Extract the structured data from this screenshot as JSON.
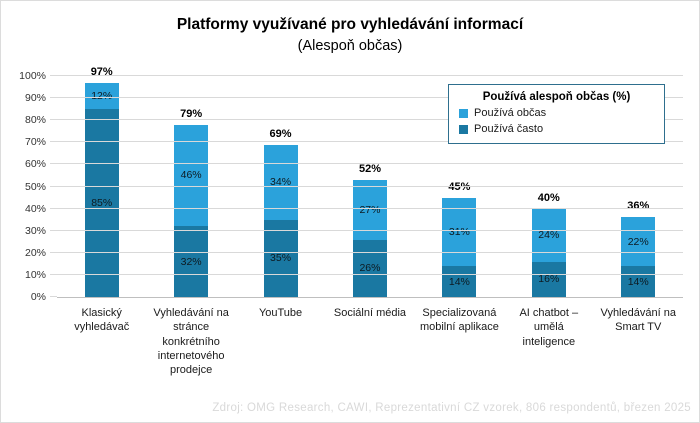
{
  "title": "Platformy využívané pro vyhledávání informací",
  "subtitle": "(Alespoň občas)",
  "legend": {
    "title": "Používá alespoň občas (%)",
    "items": [
      {
        "label": "Používá občas",
        "color": "#2BA2DB"
      },
      {
        "label": "Používá často",
        "color": "#1A78A2"
      }
    ]
  },
  "footer": "Zdroj: OMG Research, CAWI, Reprezentativní CZ vzorek, 806 respondentů, březen 2025",
  "colors": {
    "bar_light": "#2BA2DB",
    "bar_dark": "#1A78A2",
    "gridline": "#d9d9d9",
    "axis": "#bfbfbf",
    "legend_border": "#2e6f8e",
    "footer_text": "#d9d9d9"
  },
  "chart_data": {
    "type": "bar",
    "stacked": true,
    "title": "Platformy využívané pro vyhledávání informací (Alespoň občas)",
    "categories": [
      "Klasický vyhledávač",
      "Vyhledávání na stránce konkrétního internetového prodejce",
      "YouTube",
      "Sociální média",
      "Specializovaná mobilní aplikace",
      "AI chatbot – umělá inteligence",
      "Vyhledávání na Smart TV"
    ],
    "series": [
      {
        "name": "Používá často",
        "color": "#1A78A2",
        "values": [
          85,
          32,
          35,
          26,
          14,
          16,
          14
        ]
      },
      {
        "name": "Používá občas",
        "color": "#2BA2DB",
        "values": [
          12,
          46,
          34,
          27,
          31,
          24,
          22
        ]
      }
    ],
    "totals": [
      97,
      79,
      69,
      52,
      45,
      40,
      36
    ],
    "xlabel": "",
    "ylabel": "",
    "ylim": [
      0,
      100
    ],
    "yticks": [
      "0%",
      "10%",
      "20%",
      "30%",
      "40%",
      "50%",
      "60%",
      "70%",
      "80%",
      "90%",
      "100%"
    ],
    "grid": true,
    "legend_position": "top-right"
  }
}
